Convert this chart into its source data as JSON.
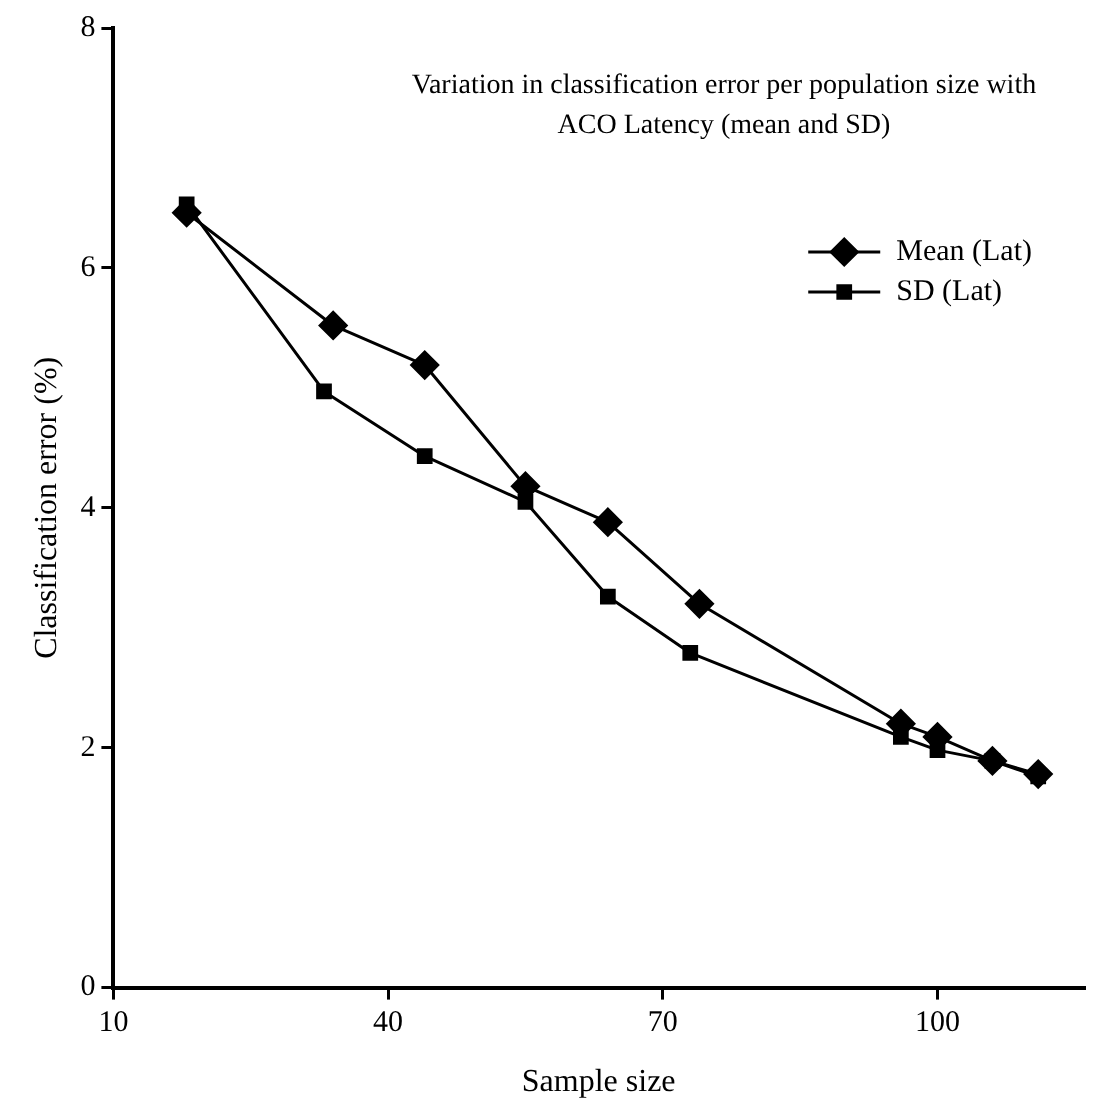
{
  "chart_data": {
    "type": "line",
    "title": "Variation in classification error per population size with ACO Latency (mean and SD)",
    "xlabel": "Sample size",
    "ylabel": "Classification error (%)",
    "series": [
      {
        "name": "Mean (Lat)",
        "color": "#000000",
        "marker": "diamond",
        "x": [
          18,
          34,
          44,
          55,
          64,
          74,
          96,
          100,
          106,
          111
        ],
        "values": [
          6.46,
          5.52,
          5.19,
          4.18,
          3.88,
          3.2,
          2.2,
          2.09,
          1.89,
          1.78
        ]
      },
      {
        "name": "SD (Lat)",
        "color": "#000000",
        "marker": "square",
        "x": [
          18,
          33,
          44,
          55,
          64,
          73,
          96,
          100,
          106,
          111
        ],
        "values": [
          6.53,
          4.97,
          4.43,
          4.05,
          3.26,
          2.79,
          2.09,
          1.98,
          1.89,
          1.76
        ]
      }
    ],
    "xlim": [
      10,
      116
    ],
    "xticks": [
      10,
      40,
      70,
      100
    ],
    "ylim": [
      0,
      8
    ],
    "yticks": [
      0,
      2,
      4,
      6,
      8
    ],
    "grid": false,
    "legend": "top right",
    "line_style": "solid"
  }
}
